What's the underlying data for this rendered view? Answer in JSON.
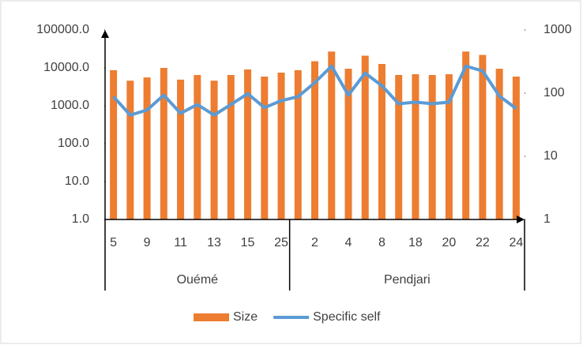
{
  "chart_data": {
    "type": "bar-line",
    "groups": [
      {
        "name": "Ouémé",
        "categories": [
          "5",
          null,
          "9",
          null,
          "11",
          null,
          "13",
          null,
          "15",
          null,
          "25"
        ]
      },
      {
        "name": "Pendjari",
        "categories": [
          null,
          "2",
          null,
          "4",
          null,
          "8",
          null,
          "18",
          null,
          "20",
          null,
          "22",
          null,
          "24"
        ]
      }
    ],
    "series": [
      {
        "name": "Size",
        "type": "bar",
        "color": "#ed7d31",
        "values": [
          8700,
          4600,
          5600,
          10000,
          4900,
          6500,
          4600,
          6500,
          9100,
          5900,
          7500,
          8700,
          15000,
          27000,
          9500,
          21000,
          12700,
          6500,
          6800,
          6500,
          6800,
          27000,
          22000,
          9500,
          5900
        ]
      },
      {
        "name": "Specific self",
        "type": "line",
        "axis": "y2",
        "color": "#5b9bd5",
        "values": [
          88,
          45,
          54,
          93,
          48,
          66,
          45,
          66,
          98,
          59,
          76,
          88,
          147,
          268,
          93,
          208,
          131,
          68,
          72,
          68,
          72,
          268,
          225,
          90,
          57
        ]
      }
    ],
    "ylim": [
      1,
      100000
    ],
    "ylog": true,
    "yticks": [
      {
        "value": 1,
        "label": "1.0"
      },
      {
        "value": 10,
        "label": "10.0"
      },
      {
        "value": 100,
        "label": "100.0"
      },
      {
        "value": 1000,
        "label": "1000.0"
      },
      {
        "value": 10000,
        "label": "10000.0"
      },
      {
        "value": 100000,
        "label": "100000.0"
      }
    ],
    "y2lim": [
      1,
      1000
    ],
    "y2log": true,
    "y2ticks": [
      1,
      10,
      100,
      1000
    ],
    "legend": "bottom"
  }
}
